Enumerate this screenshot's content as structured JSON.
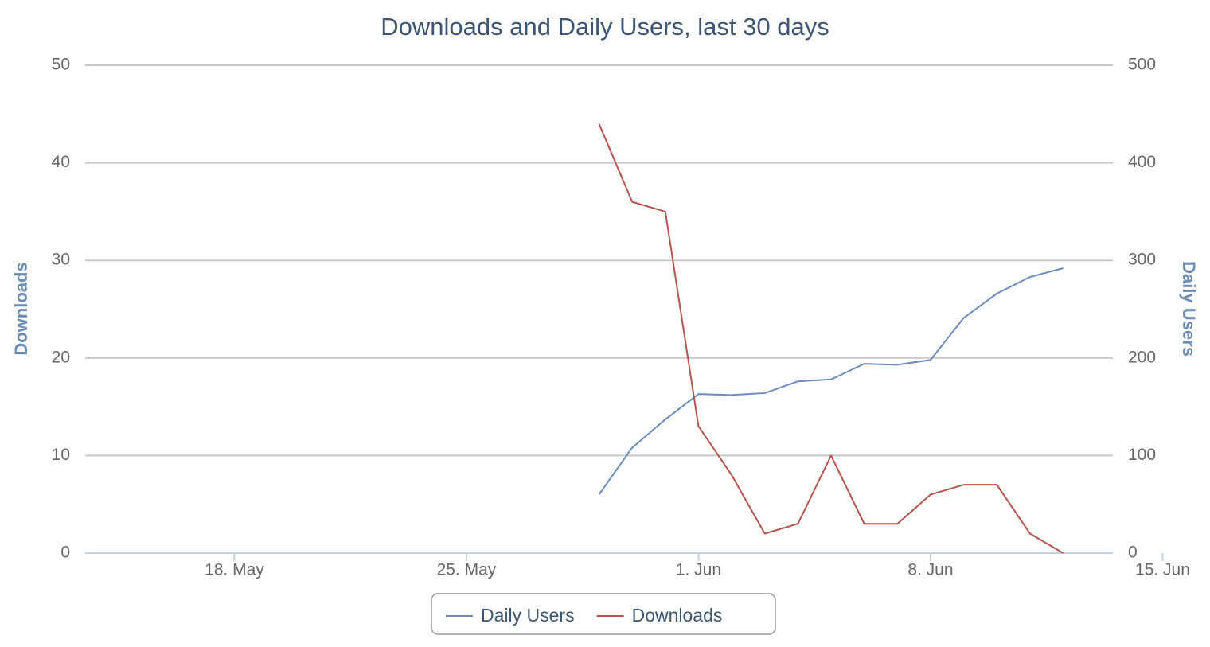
{
  "chart_data": {
    "type": "line",
    "title": "Downloads and Daily Users, last 30 days",
    "y_label": "Downloads",
    "y2_label": "Daily Users",
    "x": [
      "05-29",
      "05-30",
      "05-31",
      "06-01",
      "06-02",
      "06-03",
      "06-04",
      "06-05",
      "06-06",
      "06-07",
      "06-08",
      "06-09",
      "06-10",
      "06-11",
      "06-12"
    ],
    "series": [
      {
        "name": "Daily Users",
        "color": "#6b8cba",
        "axis": "y2",
        "values": [
          60,
          108,
          137,
          163,
          162,
          164,
          176,
          178,
          194,
          193,
          198,
          241,
          266,
          283,
          292
        ]
      },
      {
        "name": "Downloads",
        "color": "#b5534f",
        "values": [
          44,
          36,
          35,
          13,
          8,
          2,
          3,
          10,
          3,
          3,
          6,
          7,
          7,
          2,
          0
        ]
      }
    ],
    "xlim": [
      "05-13 12:00",
      "06-13 12:00"
    ],
    "xticks": [
      {
        "value": "05-18",
        "label": "18. May"
      },
      {
        "value": "05-25",
        "label": "25. May"
      },
      {
        "value": "06-01",
        "label": "1. Jun"
      },
      {
        "value": "06-08",
        "label": "8. Jun"
      },
      {
        "value": "06-15",
        "label": "15. Jun"
      }
    ],
    "ylim": [
      0,
      50
    ],
    "yticks": [
      0,
      10,
      20,
      30,
      40,
      50
    ],
    "y2lim": [
      0,
      500
    ],
    "y2ticks": [
      0,
      100,
      200,
      300,
      400,
      500
    ],
    "grid": true,
    "legend": "bottom"
  }
}
